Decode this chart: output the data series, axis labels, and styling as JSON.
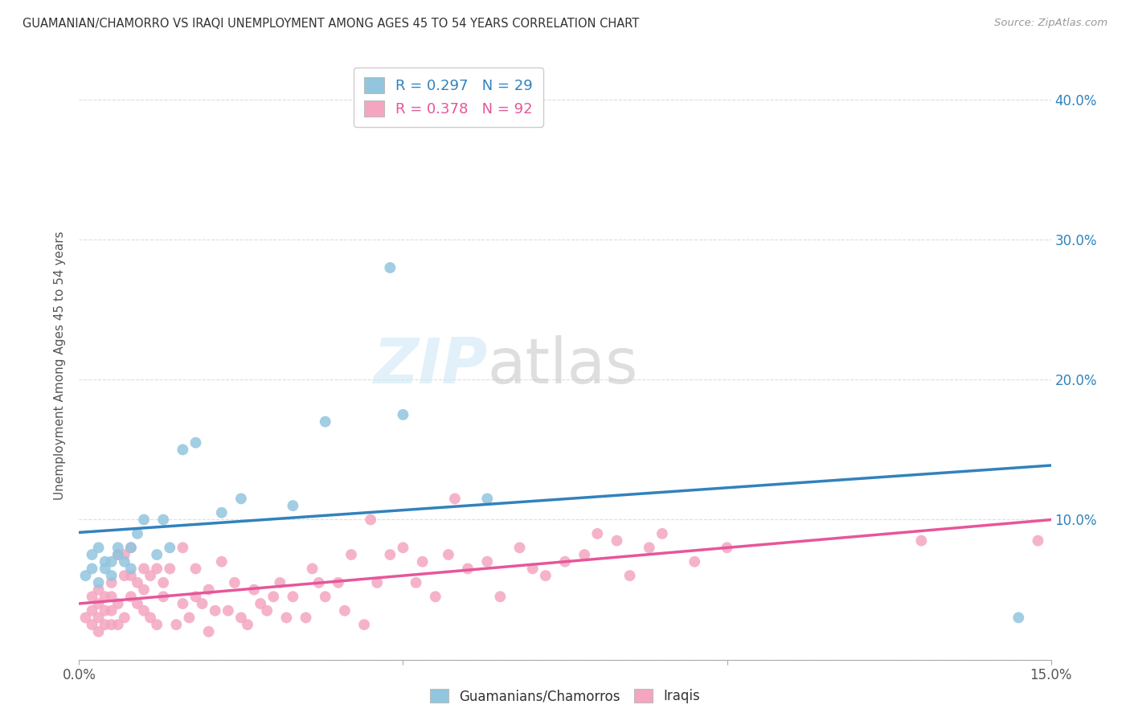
{
  "title": "GUAMANIAN/CHAMORRO VS IRAQI UNEMPLOYMENT AMONG AGES 45 TO 54 YEARS CORRELATION CHART",
  "source": "Source: ZipAtlas.com",
  "ylabel": "Unemployment Among Ages 45 to 54 years",
  "xlim": [
    0.0,
    0.15
  ],
  "ylim": [
    0.0,
    0.42
  ],
  "xticks": [
    0.0,
    0.05,
    0.1,
    0.15
  ],
  "xticklabels": [
    "0.0%",
    "",
    "",
    "15.0%"
  ],
  "yticks": [
    0.0,
    0.1,
    0.2,
    0.3,
    0.4
  ],
  "yticklabels_right": [
    "",
    "10.0%",
    "20.0%",
    "30.0%",
    "40.0%"
  ],
  "legend_label1": "R = 0.297   N = 29",
  "legend_label2": "R = 0.378   N = 92",
  "legend_r1": "0.297",
  "legend_n1": "29",
  "legend_r2": "0.378",
  "legend_n2": "92",
  "legend_footer1": "Guamanians/Chamorros",
  "legend_footer2": "Iraqis",
  "blue_color": "#92c5de",
  "pink_color": "#f4a6c0",
  "blue_line_color": "#3182bd",
  "pink_line_color": "#e6569a",
  "watermark_zip": "ZIP",
  "watermark_atlas": "atlas",
  "guamanian_x": [
    0.001,
    0.002,
    0.002,
    0.003,
    0.003,
    0.004,
    0.004,
    0.005,
    0.005,
    0.006,
    0.006,
    0.007,
    0.008,
    0.008,
    0.009,
    0.01,
    0.012,
    0.013,
    0.014,
    0.016,
    0.018,
    0.022,
    0.025,
    0.033,
    0.038,
    0.048,
    0.05,
    0.063,
    0.145
  ],
  "guamanian_y": [
    0.06,
    0.065,
    0.075,
    0.055,
    0.08,
    0.065,
    0.07,
    0.06,
    0.07,
    0.075,
    0.08,
    0.07,
    0.065,
    0.08,
    0.09,
    0.1,
    0.075,
    0.1,
    0.08,
    0.15,
    0.155,
    0.105,
    0.115,
    0.11,
    0.17,
    0.28,
    0.175,
    0.115,
    0.03
  ],
  "iraqi_x": [
    0.001,
    0.002,
    0.002,
    0.002,
    0.003,
    0.003,
    0.003,
    0.003,
    0.004,
    0.004,
    0.004,
    0.005,
    0.005,
    0.005,
    0.005,
    0.006,
    0.006,
    0.006,
    0.007,
    0.007,
    0.007,
    0.008,
    0.008,
    0.008,
    0.009,
    0.009,
    0.01,
    0.01,
    0.01,
    0.011,
    0.011,
    0.012,
    0.012,
    0.013,
    0.013,
    0.014,
    0.015,
    0.016,
    0.016,
    0.017,
    0.018,
    0.018,
    0.019,
    0.02,
    0.02,
    0.021,
    0.022,
    0.023,
    0.024,
    0.025,
    0.026,
    0.027,
    0.028,
    0.029,
    0.03,
    0.031,
    0.032,
    0.033,
    0.035,
    0.036,
    0.037,
    0.038,
    0.04,
    0.041,
    0.042,
    0.044,
    0.045,
    0.046,
    0.048,
    0.05,
    0.052,
    0.053,
    0.055,
    0.057,
    0.058,
    0.06,
    0.063,
    0.065,
    0.068,
    0.07,
    0.072,
    0.075,
    0.078,
    0.08,
    0.083,
    0.085,
    0.088,
    0.09,
    0.095,
    0.1,
    0.13,
    0.148
  ],
  "iraqi_y": [
    0.03,
    0.025,
    0.035,
    0.045,
    0.02,
    0.03,
    0.04,
    0.05,
    0.025,
    0.035,
    0.045,
    0.025,
    0.035,
    0.045,
    0.055,
    0.025,
    0.04,
    0.075,
    0.03,
    0.06,
    0.075,
    0.045,
    0.06,
    0.08,
    0.04,
    0.055,
    0.035,
    0.05,
    0.065,
    0.03,
    0.06,
    0.025,
    0.065,
    0.045,
    0.055,
    0.065,
    0.025,
    0.04,
    0.08,
    0.03,
    0.045,
    0.065,
    0.04,
    0.02,
    0.05,
    0.035,
    0.07,
    0.035,
    0.055,
    0.03,
    0.025,
    0.05,
    0.04,
    0.035,
    0.045,
    0.055,
    0.03,
    0.045,
    0.03,
    0.065,
    0.055,
    0.045,
    0.055,
    0.035,
    0.075,
    0.025,
    0.1,
    0.055,
    0.075,
    0.08,
    0.055,
    0.07,
    0.045,
    0.075,
    0.115,
    0.065,
    0.07,
    0.045,
    0.08,
    0.065,
    0.06,
    0.07,
    0.075,
    0.09,
    0.085,
    0.06,
    0.08,
    0.09,
    0.07,
    0.08,
    0.085,
    0.085
  ]
}
